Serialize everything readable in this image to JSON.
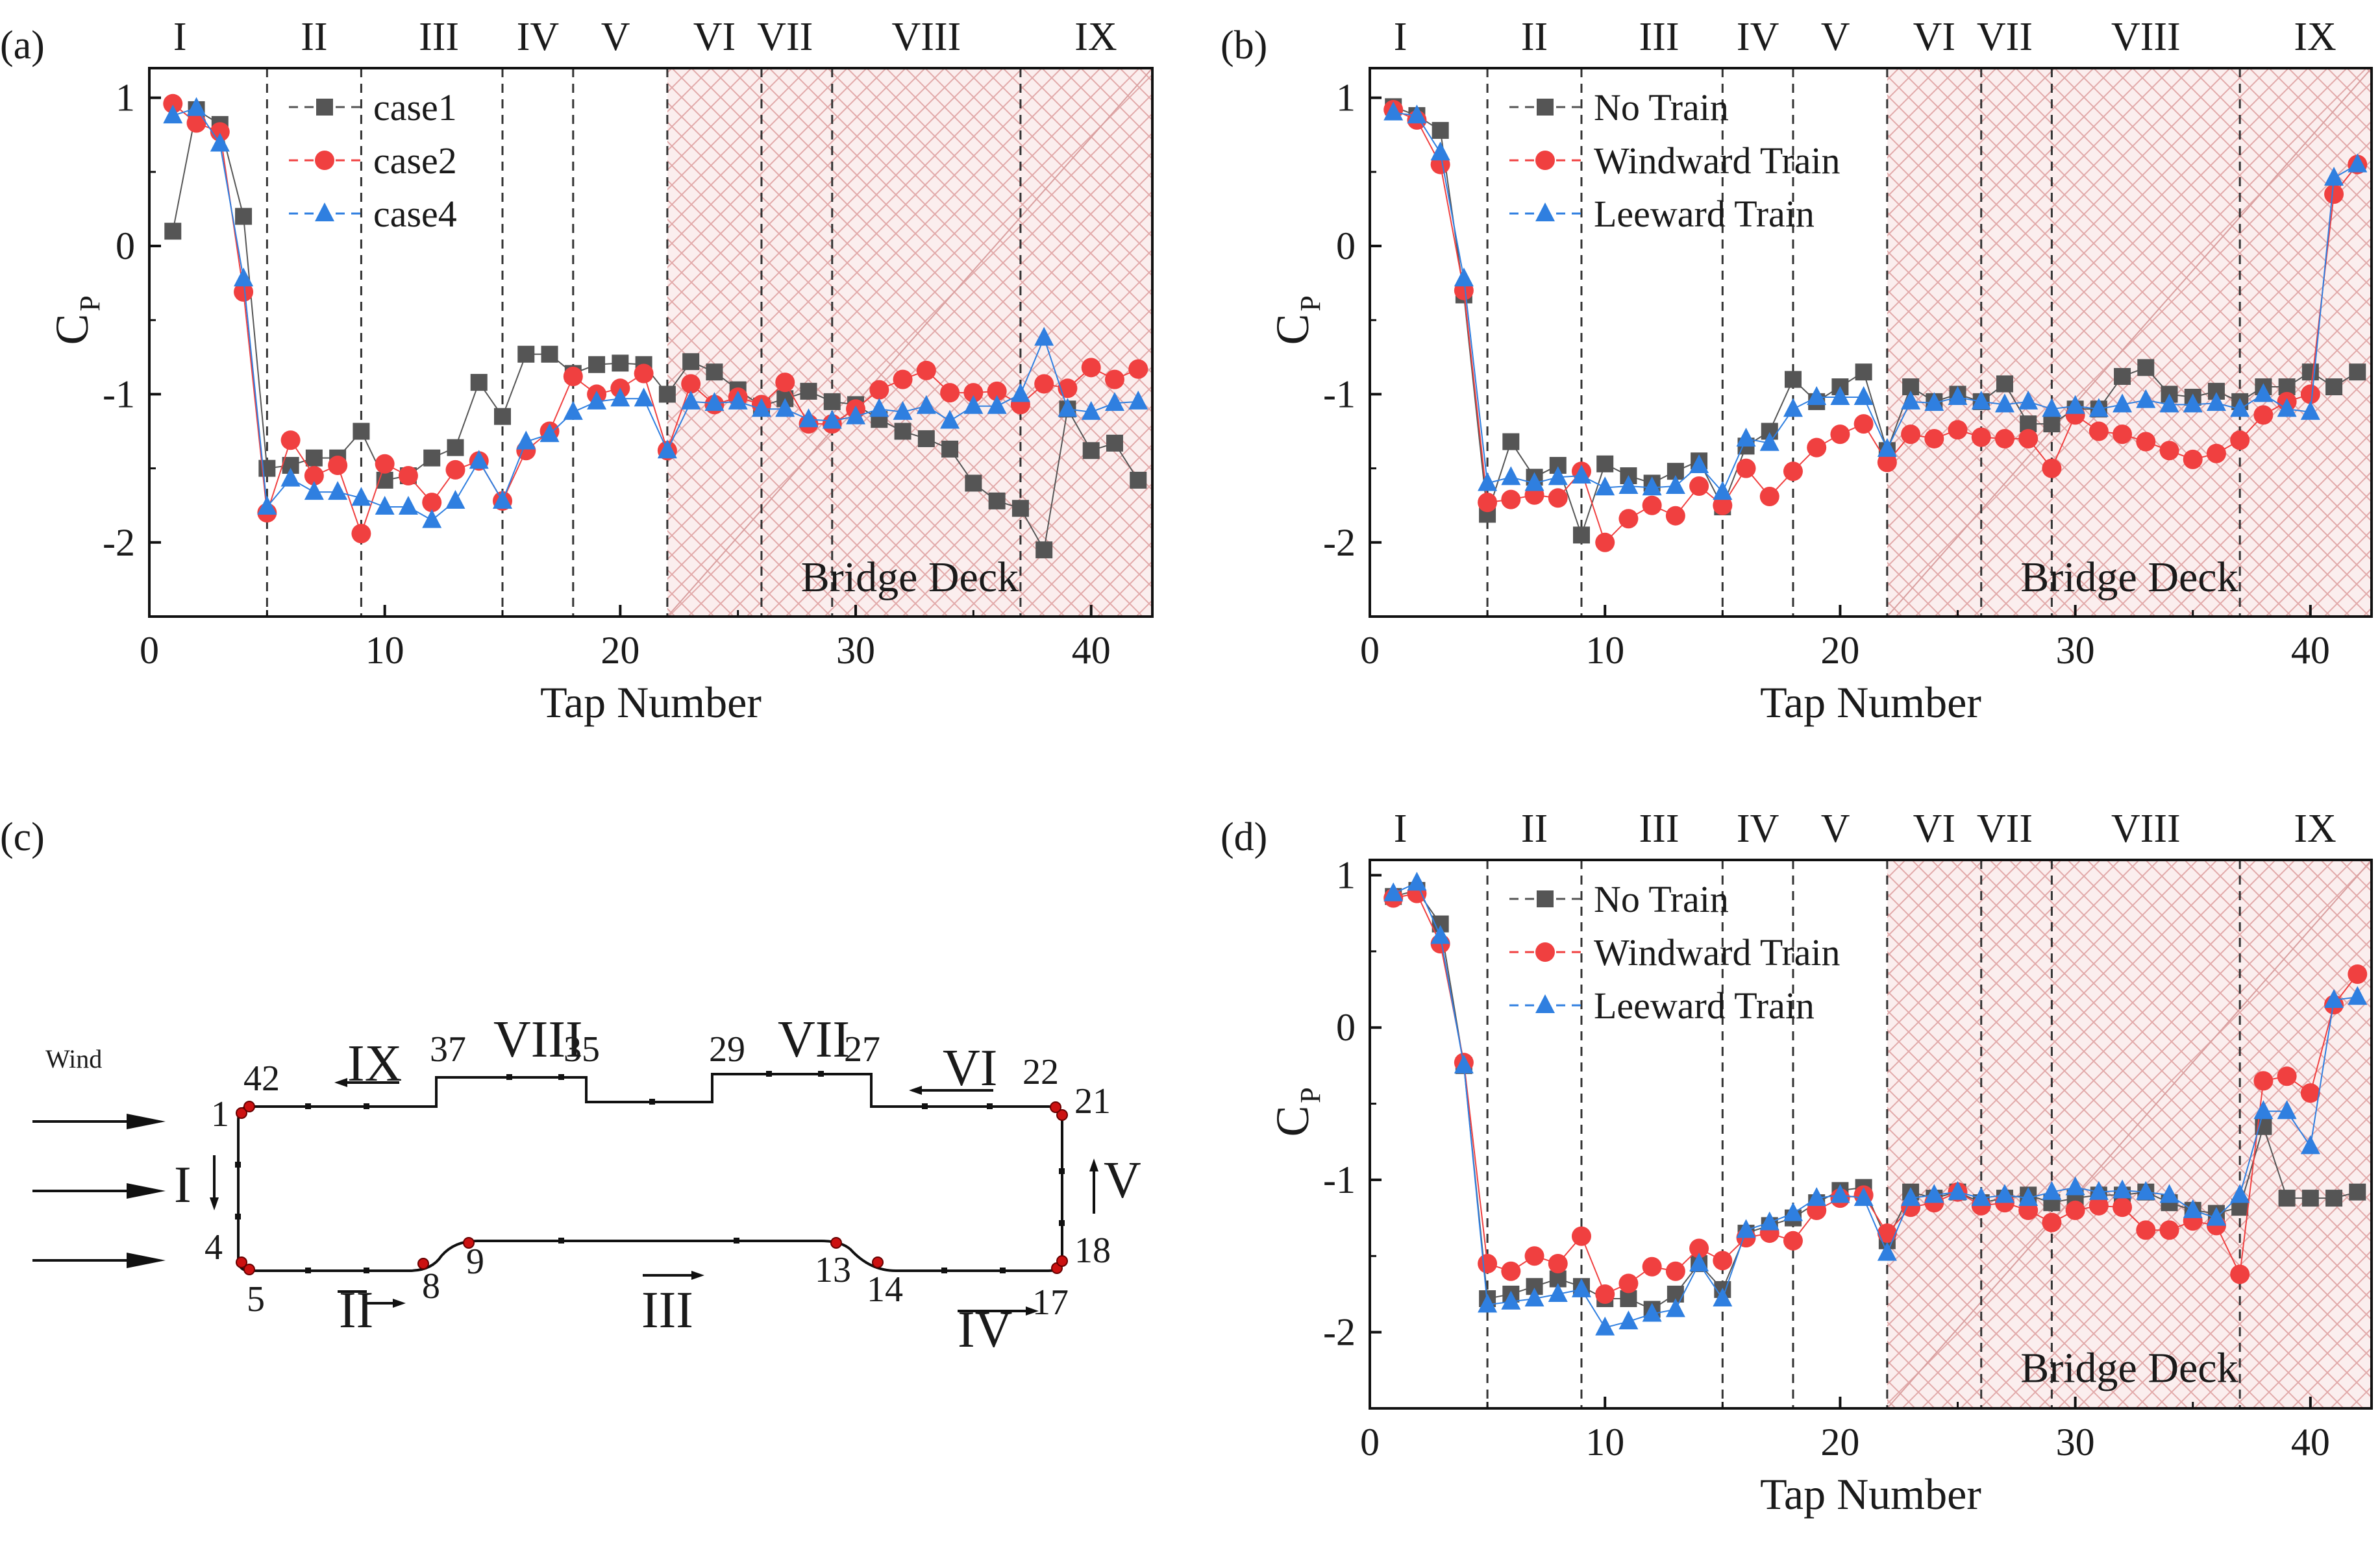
{
  "colors": {
    "case1": "#555555",
    "case2": "#f04040",
    "case4": "#2f7fe0",
    "deck_fill": "#fbeeee",
    "deck_hatch": "#e0a8a8",
    "marker_red": "#cc1111"
  },
  "chart_data": [
    {
      "panel": "(a)",
      "type": "scatter",
      "xlabel": "Tap Number",
      "ylabel_main": "C",
      "ylabel_sub": "P",
      "xlim": [
        0,
        42.6
      ],
      "ylim": [
        -2.5,
        1.2
      ],
      "xticks": [
        0,
        10,
        20,
        30,
        40
      ],
      "yticks": [
        1,
        0,
        -1,
        -2
      ],
      "region_labels": [
        "I",
        "II",
        "III",
        "IV",
        "V",
        "VI",
        "VII",
        "VIII",
        "IX"
      ],
      "region_label_x": [
        1.3,
        7,
        12.3,
        16.5,
        19.8,
        24,
        27,
        33,
        40.2
      ],
      "dividers": [
        5,
        9,
        15,
        18,
        22,
        26,
        29,
        37
      ],
      "deck_range": [
        22,
        42.6
      ],
      "deck_label": "Bridge Deck",
      "legend": [
        "case1",
        "case2",
        "case4"
      ],
      "x": [
        1,
        2,
        3,
        4,
        5,
        6,
        7,
        8,
        9,
        10,
        11,
        12,
        13,
        14,
        15,
        16,
        17,
        18,
        19,
        20,
        21,
        22,
        23,
        24,
        25,
        26,
        27,
        28,
        29,
        30,
        31,
        32,
        33,
        34,
        35,
        36,
        37,
        38,
        39,
        40,
        41,
        42
      ],
      "series": [
        {
          "name": "case1",
          "marker": "square",
          "values": [
            0.1,
            0.92,
            0.82,
            0.2,
            -1.5,
            -1.48,
            -1.43,
            -1.43,
            -1.25,
            -1.58,
            -1.55,
            -1.43,
            -1.36,
            -0.92,
            -1.15,
            -0.73,
            -0.73,
            -0.86,
            -0.8,
            -0.79,
            -0.8,
            -1.0,
            -0.78,
            -0.85,
            -0.97,
            -1.08,
            -1.03,
            -0.98,
            -1.05,
            -1.07,
            -1.17,
            -1.25,
            -1.3,
            -1.37,
            -1.6,
            -1.72,
            -1.77,
            -2.05,
            -1.1,
            -1.38,
            -1.33,
            -1.58
          ]
        },
        {
          "name": "case2",
          "marker": "circle",
          "values": [
            0.96,
            0.83,
            0.77,
            -0.31,
            -1.8,
            -1.31,
            -1.55,
            -1.48,
            -1.94,
            -1.47,
            -1.55,
            -1.73,
            -1.51,
            -1.45,
            -1.72,
            -1.38,
            -1.25,
            -0.88,
            -1.0,
            -0.96,
            -0.86,
            -1.38,
            -0.93,
            -1.07,
            -1.02,
            -1.07,
            -0.92,
            -1.2,
            -1.2,
            -1.1,
            -0.97,
            -0.9,
            -0.84,
            -0.99,
            -0.99,
            -0.98,
            -1.07,
            -0.93,
            -0.96,
            -0.82,
            -0.9,
            -0.83
          ]
        },
        {
          "name": "case4",
          "marker": "triangle",
          "values": [
            0.88,
            0.93,
            0.69,
            -0.22,
            -1.76,
            -1.57,
            -1.66,
            -1.66,
            -1.7,
            -1.76,
            -1.76,
            -1.85,
            -1.72,
            -1.45,
            -1.72,
            -1.32,
            -1.27,
            -1.12,
            -1.05,
            -1.03,
            -1.03,
            -1.38,
            -1.05,
            -1.06,
            -1.05,
            -1.1,
            -1.1,
            -1.17,
            -1.18,
            -1.15,
            -1.1,
            -1.12,
            -1.08,
            -1.18,
            -1.08,
            -1.08,
            -1.0,
            -0.62,
            -1.1,
            -1.12,
            -1.06,
            -1.05
          ]
        }
      ]
    },
    {
      "panel": "(b)",
      "type": "scatter",
      "xlabel": "Tap Number",
      "ylabel_main": "C",
      "ylabel_sub": "P",
      "xlim": [
        0,
        42.6
      ],
      "ylim": [
        -2.5,
        1.2
      ],
      "xticks": [
        0,
        10,
        20,
        30,
        40
      ],
      "yticks": [
        1,
        0,
        -1,
        -2
      ],
      "region_labels": [
        "I",
        "II",
        "III",
        "IV",
        "V",
        "VI",
        "VII",
        "VIII",
        "IX"
      ],
      "region_label_x": [
        1.3,
        7,
        12.3,
        16.5,
        19.8,
        24,
        27,
        33,
        40.2
      ],
      "dividers": [
        5,
        9,
        15,
        18,
        22,
        26,
        29,
        37
      ],
      "deck_range": [
        22,
        42.6
      ],
      "deck_label": "Bridge Deck",
      "legend": [
        "No Train",
        "Windward Train",
        "Leeward Train"
      ],
      "x": [
        1,
        2,
        3,
        4,
        5,
        6,
        7,
        8,
        9,
        10,
        11,
        12,
        13,
        14,
        15,
        16,
        17,
        18,
        19,
        20,
        21,
        22,
        23,
        24,
        25,
        26,
        27,
        28,
        29,
        30,
        31,
        32,
        33,
        34,
        35,
        36,
        37,
        38,
        39,
        40,
        41,
        42
      ],
      "series": [
        {
          "name": "No Train",
          "marker": "square",
          "values": [
            0.94,
            0.88,
            0.78,
            -0.33,
            -1.81,
            -1.32,
            -1.56,
            -1.48,
            -1.95,
            -1.47,
            -1.55,
            -1.6,
            -1.52,
            -1.45,
            -1.76,
            -1.35,
            -1.25,
            -0.9,
            -1.05,
            -0.95,
            -0.85,
            -1.38,
            -0.95,
            -1.05,
            -1.0,
            -1.05,
            -0.93,
            -1.2,
            -1.2,
            -1.1,
            -1.1,
            -0.88,
            -0.82,
            -1.0,
            -1.02,
            -0.98,
            -1.05,
            -0.95,
            -0.95,
            -0.85,
            -0.95,
            -0.85
          ]
        },
        {
          "name": "Windward Train",
          "marker": "circle",
          "values": [
            0.92,
            0.85,
            0.55,
            -0.3,
            -1.73,
            -1.71,
            -1.68,
            -1.7,
            -1.52,
            -2.0,
            -1.84,
            -1.75,
            -1.82,
            -1.62,
            -1.75,
            -1.5,
            -1.69,
            -1.52,
            -1.36,
            -1.27,
            -1.2,
            -1.46,
            -1.27,
            -1.3,
            -1.24,
            -1.29,
            -1.3,
            -1.3,
            -1.5,
            -1.14,
            -1.25,
            -1.27,
            -1.32,
            -1.38,
            -1.44,
            -1.4,
            -1.31,
            -1.14,
            -1.05,
            -1.0,
            0.35,
            0.55
          ]
        },
        {
          "name": "Leeward Train",
          "marker": "triangle",
          "values": [
            0.9,
            0.88,
            0.63,
            -0.22,
            -1.6,
            -1.56,
            -1.6,
            -1.56,
            -1.55,
            -1.63,
            -1.62,
            -1.63,
            -1.62,
            -1.48,
            -1.66,
            -1.3,
            -1.33,
            -1.1,
            -1.02,
            -1.02,
            -1.02,
            -1.37,
            -1.05,
            -1.06,
            -1.02,
            -1.05,
            -1.07,
            -1.05,
            -1.1,
            -1.08,
            -1.1,
            -1.07,
            -1.04,
            -1.07,
            -1.07,
            -1.06,
            -1.1,
            -1.0,
            -1.1,
            -1.12,
            0.46,
            0.55
          ]
        }
      ]
    },
    {
      "panel": "(d)",
      "type": "scatter",
      "xlabel": "Tap Number",
      "ylabel_main": "C",
      "ylabel_sub": "P",
      "xlim": [
        0,
        42.6
      ],
      "ylim": [
        -2.5,
        1.1
      ],
      "xticks": [
        0,
        10,
        20,
        30,
        40
      ],
      "yticks": [
        1,
        0,
        -1,
        -2
      ],
      "region_labels": [
        "I",
        "II",
        "III",
        "IV",
        "V",
        "VI",
        "VII",
        "VIII",
        "IX"
      ],
      "region_label_x": [
        1.3,
        7,
        12.3,
        16.5,
        19.8,
        24,
        27,
        33,
        40.2
      ],
      "dividers": [
        5,
        9,
        15,
        18,
        22,
        26,
        29,
        37
      ],
      "deck_range": [
        22,
        42.6
      ],
      "deck_label": "Bridge Deck",
      "legend": [
        "No Train",
        "Windward Train",
        "Leeward Train"
      ],
      "x": [
        1,
        2,
        3,
        4,
        5,
        6,
        7,
        8,
        9,
        10,
        11,
        12,
        13,
        14,
        15,
        16,
        17,
        18,
        19,
        20,
        21,
        22,
        23,
        24,
        25,
        26,
        27,
        28,
        29,
        30,
        31,
        32,
        33,
        34,
        35,
        36,
        37,
        38,
        39,
        40,
        41,
        42
      ],
      "series": [
        {
          "name": "No Train",
          "marker": "square",
          "values": [
            0.86,
            0.9,
            0.68,
            -0.25,
            -1.78,
            -1.75,
            -1.7,
            -1.65,
            -1.7,
            -1.78,
            -1.78,
            -1.85,
            -1.75,
            -1.55,
            -1.72,
            -1.35,
            -1.3,
            -1.25,
            -1.15,
            -1.07,
            -1.05,
            -1.4,
            -1.08,
            -1.12,
            -1.08,
            -1.15,
            -1.12,
            -1.1,
            -1.15,
            -1.12,
            -1.1,
            -1.1,
            -1.08,
            -1.15,
            -1.2,
            -1.22,
            -1.18,
            -0.65,
            -1.12,
            -1.12,
            -1.12,
            -1.08
          ]
        },
        {
          "name": "Windward Train",
          "marker": "circle",
          "values": [
            0.85,
            0.88,
            0.55,
            -0.23,
            -1.55,
            -1.6,
            -1.5,
            -1.55,
            -1.37,
            -1.75,
            -1.68,
            -1.57,
            -1.6,
            -1.45,
            -1.53,
            -1.38,
            -1.35,
            -1.4,
            -1.2,
            -1.12,
            -1.1,
            -1.35,
            -1.18,
            -1.15,
            -1.08,
            -1.17,
            -1.15,
            -1.2,
            -1.28,
            -1.2,
            -1.17,
            -1.18,
            -1.33,
            -1.33,
            -1.27,
            -1.3,
            -1.62,
            -0.35,
            -0.32,
            -0.43,
            0.15,
            0.35
          ]
        },
        {
          "name": "Leeward Train",
          "marker": "triangle",
          "values": [
            0.88,
            0.95,
            0.6,
            -0.25,
            -1.82,
            -1.8,
            -1.78,
            -1.75,
            -1.72,
            -1.97,
            -1.93,
            -1.88,
            -1.85,
            -1.55,
            -1.78,
            -1.33,
            -1.28,
            -1.22,
            -1.12,
            -1.1,
            -1.12,
            -1.48,
            -1.12,
            -1.1,
            -1.08,
            -1.12,
            -1.1,
            -1.12,
            -1.08,
            -1.05,
            -1.08,
            -1.07,
            -1.08,
            -1.1,
            -1.2,
            -1.25,
            -1.1,
            -0.55,
            -0.55,
            -0.78,
            0.18,
            0.2
          ]
        }
      ]
    }
  ],
  "panel_c": {
    "label": "(c)",
    "wind_label": "Wind",
    "region_labels": [
      "I",
      "II",
      "III",
      "IV",
      "V",
      "VI",
      "VII",
      "VIII",
      "IX"
    ],
    "tap_labels": [
      "1",
      "42",
      "4",
      "5",
      "8",
      "9",
      "13",
      "14",
      "17",
      "18",
      "21",
      "22",
      "27",
      "29",
      "35",
      "37"
    ]
  }
}
